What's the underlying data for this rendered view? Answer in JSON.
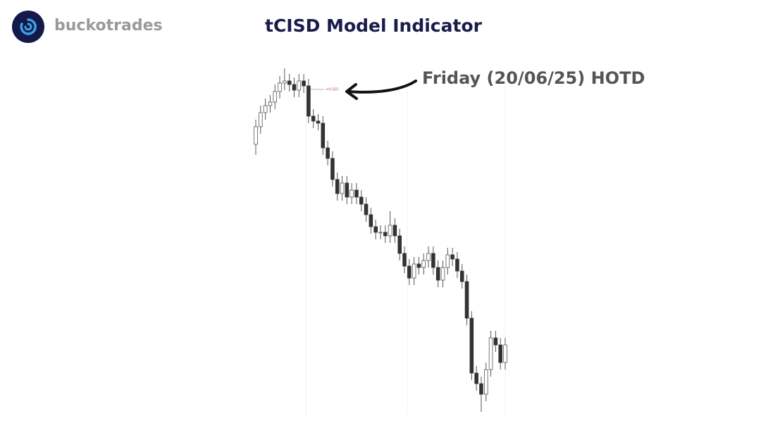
{
  "brand": "buckotrades",
  "chart_data": {
    "type": "candlestick",
    "title": "tCISD Model Indicator",
    "annotation": "Friday (20/06/25) HOTD",
    "marker_label": "+tCISD",
    "up_color": "#ffffff",
    "down_color": "#333333",
    "wick_color": "#555555",
    "ylim": [
      0,
      520
    ],
    "open": [
      395,
      420,
      440,
      450,
      455,
      470,
      482,
      485,
      480,
      472,
      485,
      478,
      435,
      428,
      425,
      390,
      375,
      345,
      325,
      340,
      320,
      330,
      320,
      310,
      295,
      278,
      270,
      270,
      265,
      280,
      265,
      240,
      222,
      205,
      225,
      220,
      230,
      240,
      220,
      202,
      220,
      238,
      232,
      215,
      200,
      148,
      70,
      55,
      40,
      75,
      120,
      110,
      85
    ],
    "high": [
      430,
      450,
      460,
      465,
      480,
      492,
      503,
      495,
      490,
      495,
      495,
      488,
      445,
      438,
      435,
      400,
      385,
      355,
      350,
      350,
      340,
      340,
      330,
      320,
      305,
      288,
      280,
      280,
      300,
      290,
      275,
      250,
      232,
      235,
      235,
      240,
      250,
      250,
      230,
      230,
      248,
      248,
      242,
      225,
      210,
      158,
      80,
      65,
      85,
      130,
      130,
      120,
      120
    ],
    "low": [
      380,
      410,
      430,
      440,
      445,
      460,
      472,
      470,
      462,
      462,
      468,
      425,
      418,
      415,
      380,
      365,
      335,
      315,
      315,
      310,
      310,
      310,
      300,
      285,
      268,
      260,
      260,
      255,
      255,
      255,
      230,
      212,
      195,
      195,
      210,
      210,
      220,
      210,
      192,
      192,
      210,
      222,
      205,
      190,
      138,
      60,
      45,
      15,
      30,
      65,
      100,
      75,
      75
    ],
    "close": [
      420,
      440,
      450,
      455,
      470,
      482,
      485,
      480,
      472,
      485,
      478,
      435,
      428,
      425,
      390,
      375,
      345,
      325,
      340,
      320,
      330,
      320,
      310,
      295,
      278,
      270,
      270,
      265,
      280,
      265,
      240,
      222,
      205,
      225,
      220,
      230,
      240,
      220,
      202,
      220,
      238,
      232,
      215,
      200,
      148,
      70,
      55,
      40,
      75,
      120,
      110,
      85,
      110
    ]
  }
}
